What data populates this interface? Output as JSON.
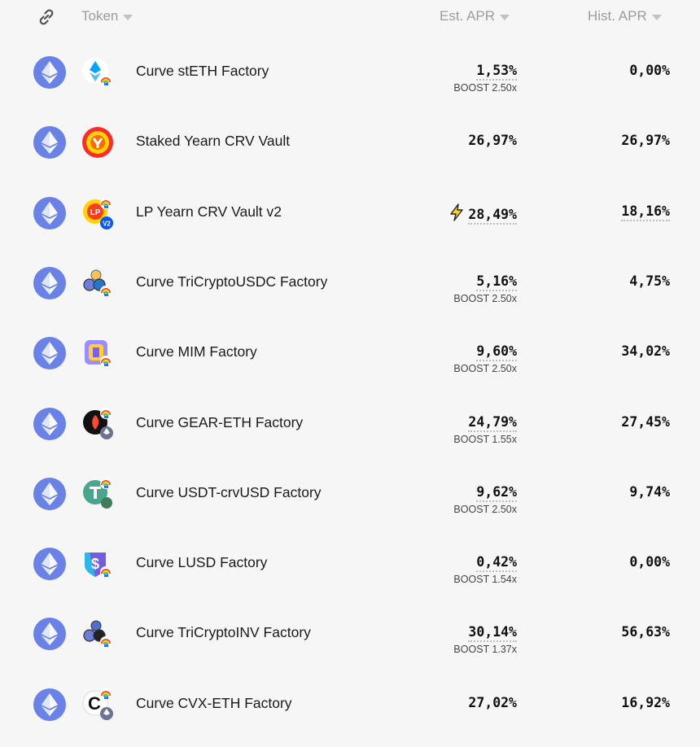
{
  "header": {
    "token_label": "Token",
    "est_apr_label": "Est. APR",
    "hist_apr_label": "Hist. APR"
  },
  "rows": [
    {
      "chain_icon": "ethereum-icon",
      "token_icon": "steth-lp-icon",
      "name": "Curve stETH Factory",
      "est_apr": "1,53%",
      "boost": "BOOST 2.50x",
      "hist_apr": "0,00%"
    },
    {
      "chain_icon": "ethereum-icon",
      "token_icon": "yearn-crv-icon",
      "name": "Staked Yearn CRV Vault",
      "est_apr": "26,97%",
      "boost": "",
      "hist_apr": "26,97%"
    },
    {
      "chain_icon": "ethereum-icon",
      "token_icon": "lp-yearn-v2-icon",
      "name": "LP Yearn CRV Vault v2",
      "est_apr": "28,49%",
      "boost": "",
      "hist_apr": "18,16%",
      "lightning": true
    },
    {
      "chain_icon": "ethereum-icon",
      "token_icon": "tricrypto-usdc-icon",
      "name": "Curve TriCryptoUSDC Factory",
      "est_apr": "5,16%",
      "boost": "BOOST 2.50x",
      "hist_apr": "4,75%"
    },
    {
      "chain_icon": "ethereum-icon",
      "token_icon": "mim-lp-icon",
      "name": "Curve MIM Factory",
      "est_apr": "9,60%",
      "boost": "BOOST 2.50x",
      "hist_apr": "34,02%"
    },
    {
      "chain_icon": "ethereum-icon",
      "token_icon": "gear-eth-icon",
      "name": "Curve GEAR-ETH Factory",
      "est_apr": "24,79%",
      "boost": "BOOST 1.55x",
      "hist_apr": "27,45%"
    },
    {
      "chain_icon": "ethereum-icon",
      "token_icon": "usdt-crvusd-icon",
      "name": "Curve USDT-crvUSD Factory",
      "est_apr": "9,62%",
      "boost": "BOOST 2.50x",
      "hist_apr": "9,74%"
    },
    {
      "chain_icon": "ethereum-icon",
      "token_icon": "lusd-lp-icon",
      "name": "Curve LUSD Factory",
      "est_apr": "0,42%",
      "boost": "BOOST 1.54x",
      "hist_apr": "0,00%"
    },
    {
      "chain_icon": "ethereum-icon",
      "token_icon": "tricrypto-inv-icon",
      "name": "Curve TriCryptoINV Factory",
      "est_apr": "30,14%",
      "boost": "BOOST 1.37x",
      "hist_apr": "56,63%"
    },
    {
      "chain_icon": "ethereum-icon",
      "token_icon": "cvx-eth-icon",
      "name": "Curve CVX-ETH Factory",
      "est_apr": "27,02%",
      "boost": "",
      "hist_apr": "16,92%"
    }
  ]
}
